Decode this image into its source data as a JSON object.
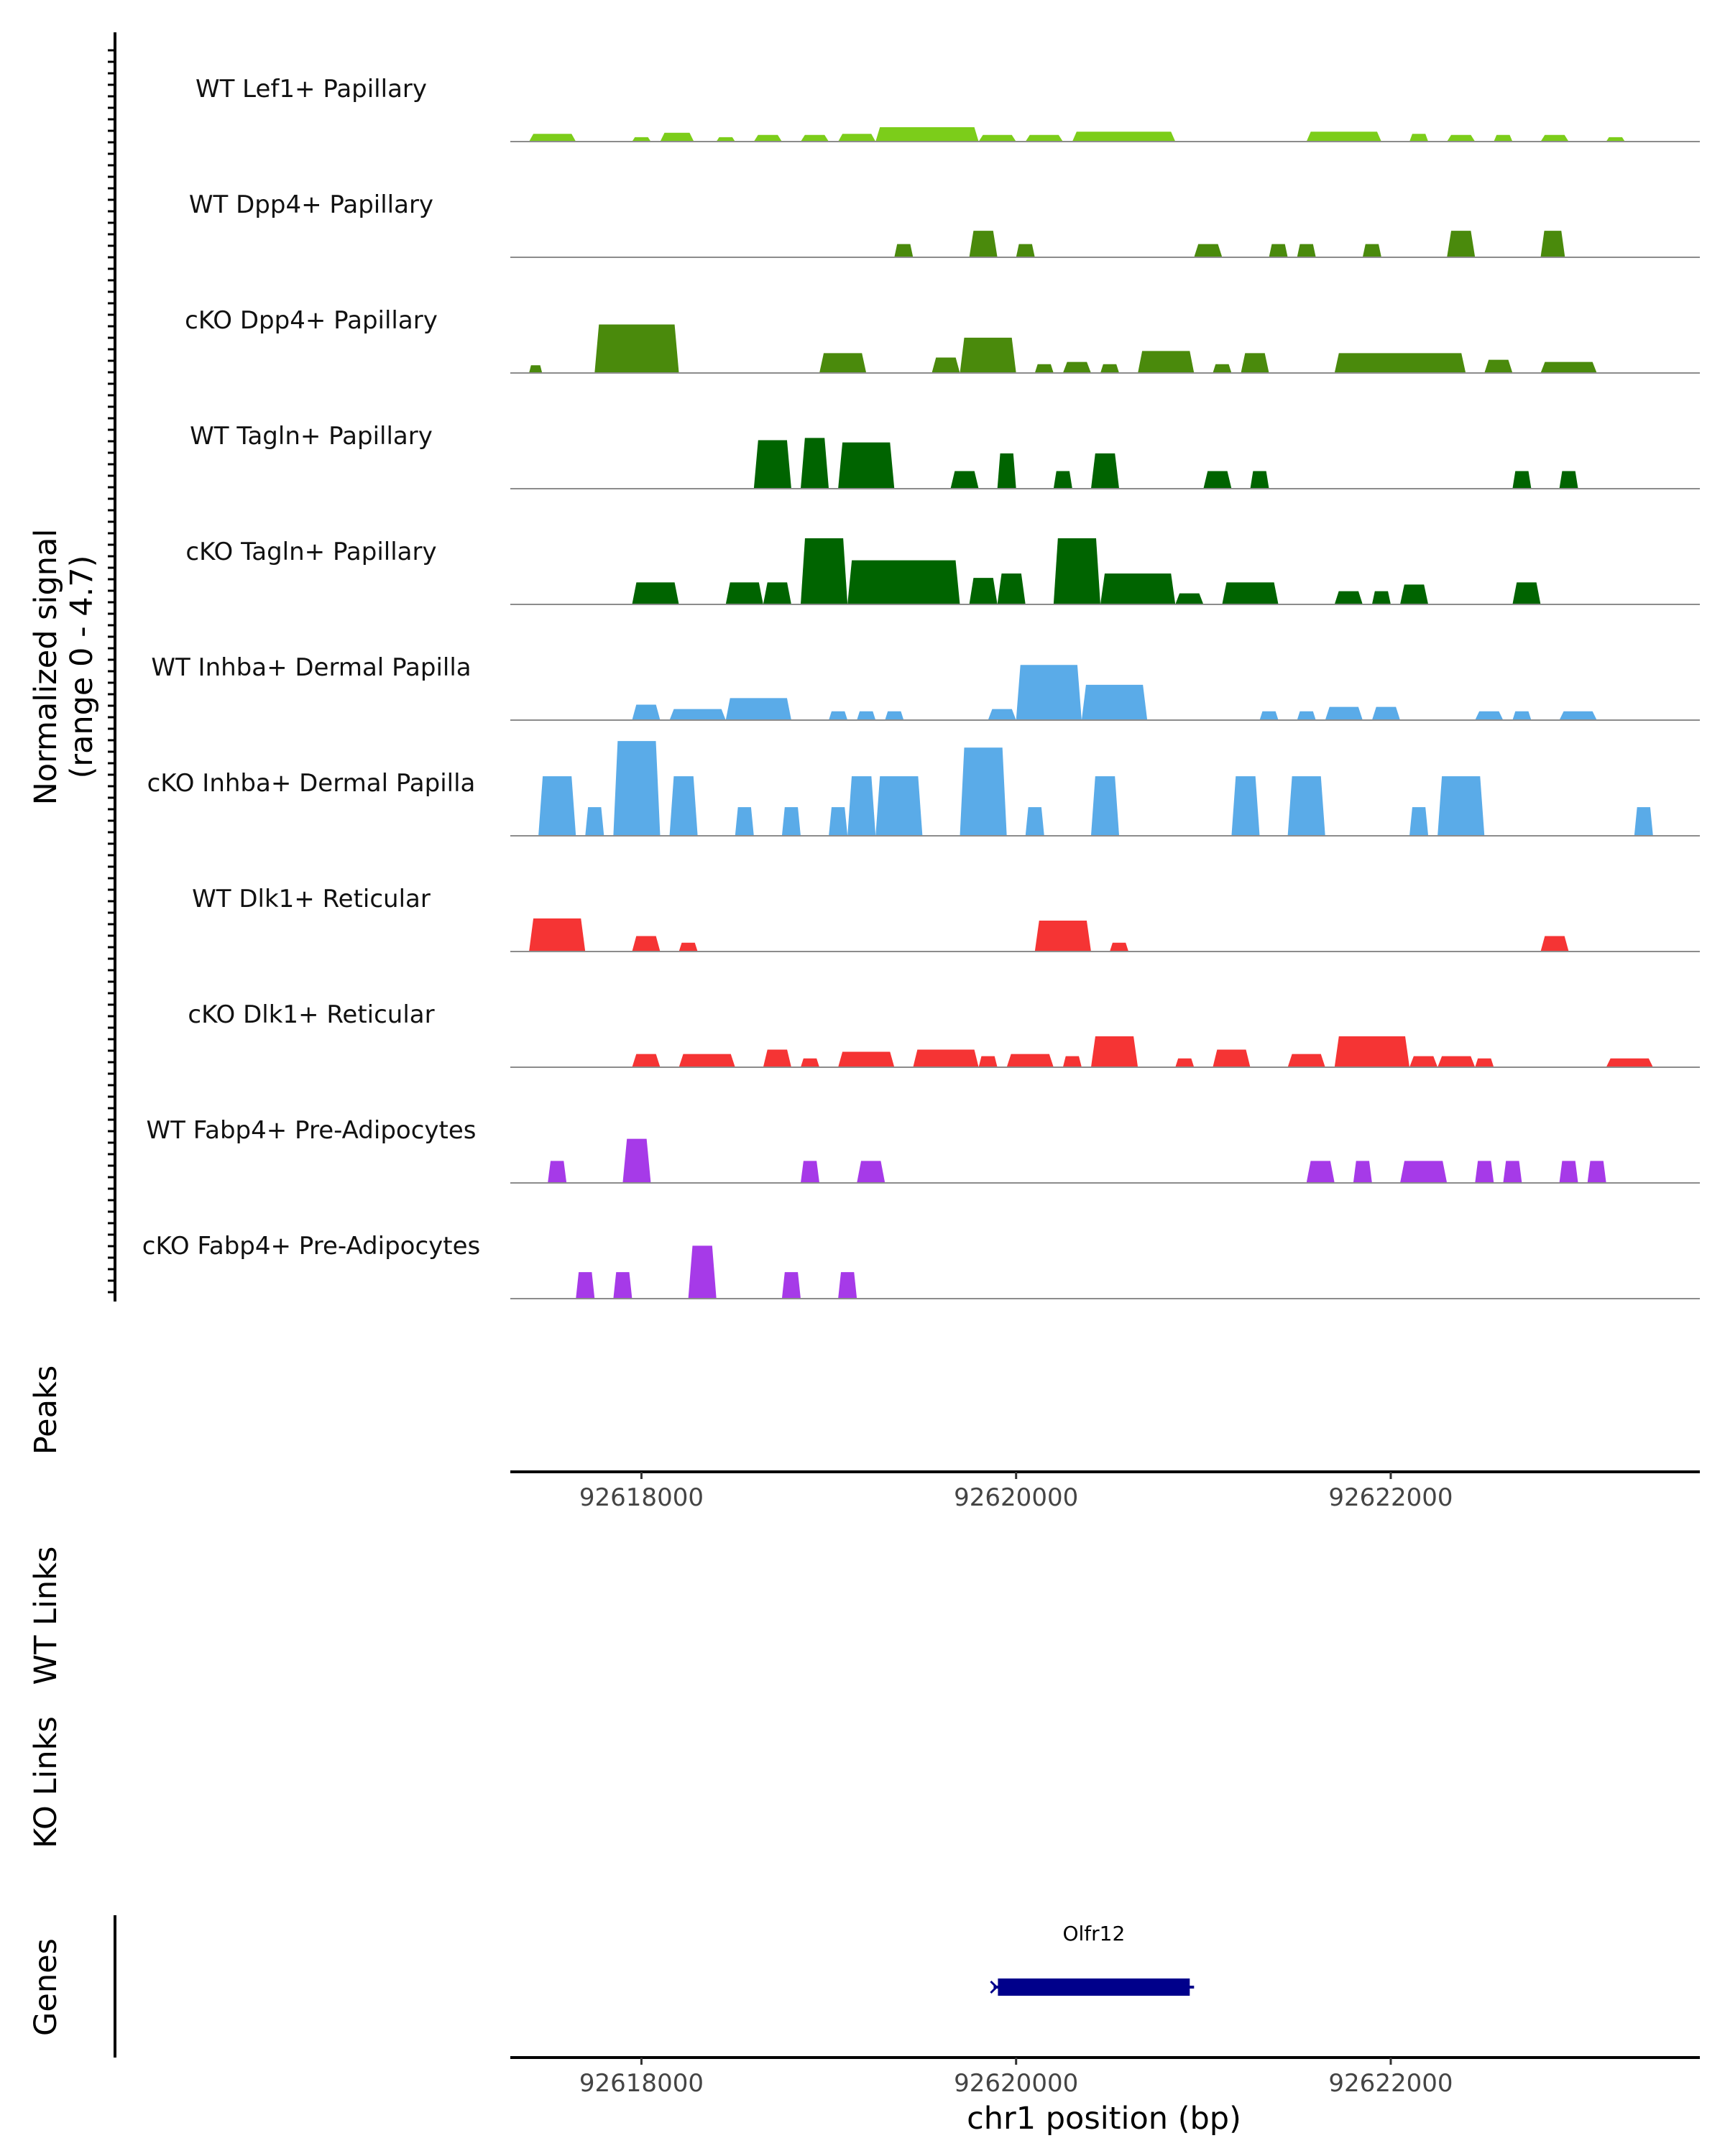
{
  "chart_data": {
    "type": "area",
    "title": "",
    "region": {
      "chrom": "chr1",
      "start": 92617300,
      "end": 92623650
    },
    "signal_axis_label": [
      "Normalized signal",
      "(range 0 - 4.7)"
    ],
    "ylim": [
      0,
      4.7
    ],
    "tracks": [
      {
        "name": "WT Lef1+ Papillary",
        "color": "#7ccd1a",
        "regions": [
          {
            "s": 92617400,
            "e": 92617650,
            "v": 0.35
          },
          {
            "s": 92617950,
            "e": 92618050,
            "v": 0.2
          },
          {
            "s": 92618100,
            "e": 92618280,
            "v": 0.4
          },
          {
            "s": 92618400,
            "e": 92618500,
            "v": 0.2
          },
          {
            "s": 92618600,
            "e": 92618750,
            "v": 0.3
          },
          {
            "s": 92618850,
            "e": 92619000,
            "v": 0.3
          },
          {
            "s": 92619050,
            "e": 92619250,
            "v": 0.35
          },
          {
            "s": 92619250,
            "e": 92619800,
            "v": 0.65
          },
          {
            "s": 92619800,
            "e": 92620000,
            "v": 0.3
          },
          {
            "s": 92620050,
            "e": 92620250,
            "v": 0.3
          },
          {
            "s": 92620300,
            "e": 92620850,
            "v": 0.45
          },
          {
            "s": 92621550,
            "e": 92621950,
            "v": 0.45
          },
          {
            "s": 92622100,
            "e": 92622200,
            "v": 0.35
          },
          {
            "s": 92622300,
            "e": 92622450,
            "v": 0.3
          },
          {
            "s": 92622550,
            "e": 92622650,
            "v": 0.3
          },
          {
            "s": 92622800,
            "e": 92622950,
            "v": 0.3
          },
          {
            "s": 92623150,
            "e": 92623250,
            "v": 0.2
          }
        ]
      },
      {
        "name": "WT Dpp4+ Papillary",
        "color": "#4a8a0c",
        "regions": [
          {
            "s": 92619350,
            "e": 92619450,
            "v": 0.6
          },
          {
            "s": 92619750,
            "e": 92619900,
            "v": 1.2
          },
          {
            "s": 92620000,
            "e": 92620100,
            "v": 0.6
          },
          {
            "s": 92620950,
            "e": 92621100,
            "v": 0.6
          },
          {
            "s": 92621350,
            "e": 92621450,
            "v": 0.6
          },
          {
            "s": 92621500,
            "e": 92621600,
            "v": 0.6
          },
          {
            "s": 92621850,
            "e": 92621950,
            "v": 0.6
          },
          {
            "s": 92622300,
            "e": 92622450,
            "v": 1.2
          },
          {
            "s": 92622800,
            "e": 92622930,
            "v": 1.2
          }
        ]
      },
      {
        "name": "cKO Dpp4+ Papillary",
        "color": "#4a8a0c",
        "regions": [
          {
            "s": 92617400,
            "e": 92617470,
            "v": 0.35
          },
          {
            "s": 92617750,
            "e": 92618200,
            "v": 2.2
          },
          {
            "s": 92618950,
            "e": 92619200,
            "v": 0.9
          },
          {
            "s": 92619550,
            "e": 92619700,
            "v": 0.7
          },
          {
            "s": 92619700,
            "e": 92620000,
            "v": 1.6
          },
          {
            "s": 92620100,
            "e": 92620200,
            "v": 0.4
          },
          {
            "s": 92620250,
            "e": 92620400,
            "v": 0.5
          },
          {
            "s": 92620450,
            "e": 92620550,
            "v": 0.4
          },
          {
            "s": 92620650,
            "e": 92620950,
            "v": 1.0
          },
          {
            "s": 92621050,
            "e": 92621150,
            "v": 0.4
          },
          {
            "s": 92621200,
            "e": 92621350,
            "v": 0.9
          },
          {
            "s": 92621700,
            "e": 92622400,
            "v": 0.9
          },
          {
            "s": 92622500,
            "e": 92622650,
            "v": 0.6
          },
          {
            "s": 92622800,
            "e": 92623100,
            "v": 0.5
          }
        ]
      },
      {
        "name": "WT Tagln+ Papillary",
        "color": "#006400",
        "regions": [
          {
            "s": 92618600,
            "e": 92618800,
            "v": 2.2
          },
          {
            "s": 92618850,
            "e": 92619000,
            "v": 2.3
          },
          {
            "s": 92619050,
            "e": 92619350,
            "v": 2.1
          },
          {
            "s": 92619650,
            "e": 92619800,
            "v": 0.8
          },
          {
            "s": 92619900,
            "e": 92620000,
            "v": 1.6
          },
          {
            "s": 92620200,
            "e": 92620300,
            "v": 0.8
          },
          {
            "s": 92620400,
            "e": 92620550,
            "v": 1.6
          },
          {
            "s": 92621000,
            "e": 92621150,
            "v": 0.8
          },
          {
            "s": 92621250,
            "e": 92621350,
            "v": 0.8
          },
          {
            "s": 92622650,
            "e": 92622750,
            "v": 0.8
          },
          {
            "s": 92622900,
            "e": 92623000,
            "v": 0.8
          }
        ]
      },
      {
        "name": "cKO Tagln+ Papillary",
        "color": "#006400",
        "regions": [
          {
            "s": 92617950,
            "e": 92618200,
            "v": 1.0
          },
          {
            "s": 92618450,
            "e": 92618650,
            "v": 1.0
          },
          {
            "s": 92618650,
            "e": 92618800,
            "v": 1.0
          },
          {
            "s": 92618850,
            "e": 92619100,
            "v": 3.0
          },
          {
            "s": 92619100,
            "e": 92619700,
            "v": 2.0
          },
          {
            "s": 92619750,
            "e": 92619900,
            "v": 1.2
          },
          {
            "s": 92619900,
            "e": 92620050,
            "v": 1.4
          },
          {
            "s": 92620200,
            "e": 92620450,
            "v": 3.0
          },
          {
            "s": 92620450,
            "e": 92620850,
            "v": 1.4
          },
          {
            "s": 92620850,
            "e": 92621000,
            "v": 0.5
          },
          {
            "s": 92621100,
            "e": 92621400,
            "v": 1.0
          },
          {
            "s": 92621700,
            "e": 92621850,
            "v": 0.6
          },
          {
            "s": 92621900,
            "e": 92622000,
            "v": 0.6
          },
          {
            "s": 92622050,
            "e": 92622200,
            "v": 0.9
          },
          {
            "s": 92622650,
            "e": 92622800,
            "v": 1.0
          }
        ]
      },
      {
        "name": "WT Inhba+ Dermal Papilla",
        "color": "#5aabe8",
        "regions": [
          {
            "s": 92617950,
            "e": 92618100,
            "v": 0.7
          },
          {
            "s": 92618150,
            "e": 92618450,
            "v": 0.5
          },
          {
            "s": 92618450,
            "e": 92618800,
            "v": 1.0
          },
          {
            "s": 92619000,
            "e": 92619100,
            "v": 0.4
          },
          {
            "s": 92619150,
            "e": 92619250,
            "v": 0.4
          },
          {
            "s": 92619300,
            "e": 92619400,
            "v": 0.4
          },
          {
            "s": 92619850,
            "e": 92620000,
            "v": 0.5
          },
          {
            "s": 92620000,
            "e": 92620350,
            "v": 2.5
          },
          {
            "s": 92620350,
            "e": 92620700,
            "v": 1.6
          },
          {
            "s": 92621300,
            "e": 92621400,
            "v": 0.4
          },
          {
            "s": 92621500,
            "e": 92621600,
            "v": 0.4
          },
          {
            "s": 92621650,
            "e": 92621850,
            "v": 0.6
          },
          {
            "s": 92621900,
            "e": 92622050,
            "v": 0.6
          },
          {
            "s": 92622450,
            "e": 92622600,
            "v": 0.4
          },
          {
            "s": 92622650,
            "e": 92622750,
            "v": 0.4
          },
          {
            "s": 92622900,
            "e": 92623100,
            "v": 0.4
          }
        ]
      },
      {
        "name": "cKO Inhba+ Dermal Papilla",
        "color": "#5aabe8",
        "regions": [
          {
            "s": 92617450,
            "e": 92617650,
            "v": 2.7
          },
          {
            "s": 92617700,
            "e": 92617800,
            "v": 1.3
          },
          {
            "s": 92617850,
            "e": 92618100,
            "v": 4.3
          },
          {
            "s": 92618150,
            "e": 92618300,
            "v": 2.7
          },
          {
            "s": 92618500,
            "e": 92618600,
            "v": 1.3
          },
          {
            "s": 92618750,
            "e": 92618850,
            "v": 1.3
          },
          {
            "s": 92619000,
            "e": 92619100,
            "v": 1.3
          },
          {
            "s": 92619100,
            "e": 92619250,
            "v": 2.7
          },
          {
            "s": 92619250,
            "e": 92619500,
            "v": 2.7
          },
          {
            "s": 92619700,
            "e": 92619950,
            "v": 4.0
          },
          {
            "s": 92620050,
            "e": 92620150,
            "v": 1.3
          },
          {
            "s": 92620400,
            "e": 92620550,
            "v": 2.7
          },
          {
            "s": 92621150,
            "e": 92621300,
            "v": 2.7
          },
          {
            "s": 92621450,
            "e": 92621650,
            "v": 2.7
          },
          {
            "s": 92622100,
            "e": 92622200,
            "v": 1.3
          },
          {
            "s": 92622250,
            "e": 92622500,
            "v": 2.7
          },
          {
            "s": 92623300,
            "e": 92623400,
            "v": 1.3
          }
        ]
      },
      {
        "name": "WT Dlk1+ Reticular",
        "color": "#f53434",
        "regions": [
          {
            "s": 92617400,
            "e": 92617700,
            "v": 1.5
          },
          {
            "s": 92617950,
            "e": 92618100,
            "v": 0.7
          },
          {
            "s": 92618200,
            "e": 92618300,
            "v": 0.4
          },
          {
            "s": 92620100,
            "e": 92620400,
            "v": 1.4
          },
          {
            "s": 92620500,
            "e": 92620600,
            "v": 0.4
          },
          {
            "s": 92622800,
            "e": 92622950,
            "v": 0.7
          }
        ]
      },
      {
        "name": "cKO Dlk1+ Reticular",
        "color": "#f53434",
        "regions": [
          {
            "s": 92617950,
            "e": 92618100,
            "v": 0.6
          },
          {
            "s": 92618200,
            "e": 92618500,
            "v": 0.6
          },
          {
            "s": 92618650,
            "e": 92618800,
            "v": 0.8
          },
          {
            "s": 92618850,
            "e": 92618950,
            "v": 0.4
          },
          {
            "s": 92619050,
            "e": 92619350,
            "v": 0.7
          },
          {
            "s": 92619450,
            "e": 92619800,
            "v": 0.8
          },
          {
            "s": 92619800,
            "e": 92619900,
            "v": 0.5
          },
          {
            "s": 92619950,
            "e": 92620200,
            "v": 0.6
          },
          {
            "s": 92620250,
            "e": 92620350,
            "v": 0.5
          },
          {
            "s": 92620400,
            "e": 92620650,
            "v": 1.4
          },
          {
            "s": 92620850,
            "e": 92620950,
            "v": 0.4
          },
          {
            "s": 92621050,
            "e": 92621250,
            "v": 0.8
          },
          {
            "s": 92621450,
            "e": 92621650,
            "v": 0.6
          },
          {
            "s": 92621700,
            "e": 92622100,
            "v": 1.4
          },
          {
            "s": 92622100,
            "e": 92622250,
            "v": 0.5
          },
          {
            "s": 92622250,
            "e": 92622450,
            "v": 0.5
          },
          {
            "s": 92622450,
            "e": 92622550,
            "v": 0.4
          },
          {
            "s": 92623150,
            "e": 92623400,
            "v": 0.4
          }
        ]
      },
      {
        "name": "WT Fabp4+ Pre-Adipocytes",
        "color": "#a63ae8",
        "regions": [
          {
            "s": 92617500,
            "e": 92617600,
            "v": 1.0
          },
          {
            "s": 92617900,
            "e": 92618050,
            "v": 2.0
          },
          {
            "s": 92618850,
            "e": 92618950,
            "v": 1.0
          },
          {
            "s": 92619150,
            "e": 92619300,
            "v": 1.0
          },
          {
            "s": 92621550,
            "e": 92621700,
            "v": 1.0
          },
          {
            "s": 92621800,
            "e": 92621900,
            "v": 1.0
          },
          {
            "s": 92622050,
            "e": 92622300,
            "v": 1.0
          },
          {
            "s": 92622450,
            "e": 92622550,
            "v": 1.0
          },
          {
            "s": 92622600,
            "e": 92622700,
            "v": 1.0
          },
          {
            "s": 92622900,
            "e": 92623000,
            "v": 1.0
          },
          {
            "s": 92623050,
            "e": 92623150,
            "v": 1.0
          }
        ]
      },
      {
        "name": "cKO Fabp4+ Pre-Adipocytes",
        "color": "#a63ae8",
        "regions": [
          {
            "s": 92617650,
            "e": 92617750,
            "v": 1.2
          },
          {
            "s": 92617850,
            "e": 92617950,
            "v": 1.2
          },
          {
            "s": 92618250,
            "e": 92618400,
            "v": 2.4
          },
          {
            "s": 92618750,
            "e": 92618850,
            "v": 1.2
          },
          {
            "s": 92619050,
            "e": 92619150,
            "v": 1.2
          }
        ]
      }
    ],
    "peaks_label": "Peaks",
    "wt_links_label": "WT Links",
    "ko_links_label": "KO Links",
    "genes_label": "Genes",
    "x_ticks": [
      92618000,
      92620000,
      92622000
    ],
    "x_tick_labels": [
      "92618000",
      "92620000",
      "92622000"
    ],
    "xlabel": "chr1 position (bp)",
    "genes": [
      {
        "name": "Olfr12",
        "start": 92619880,
        "end": 92620950,
        "color": "#00008b"
      }
    ]
  }
}
